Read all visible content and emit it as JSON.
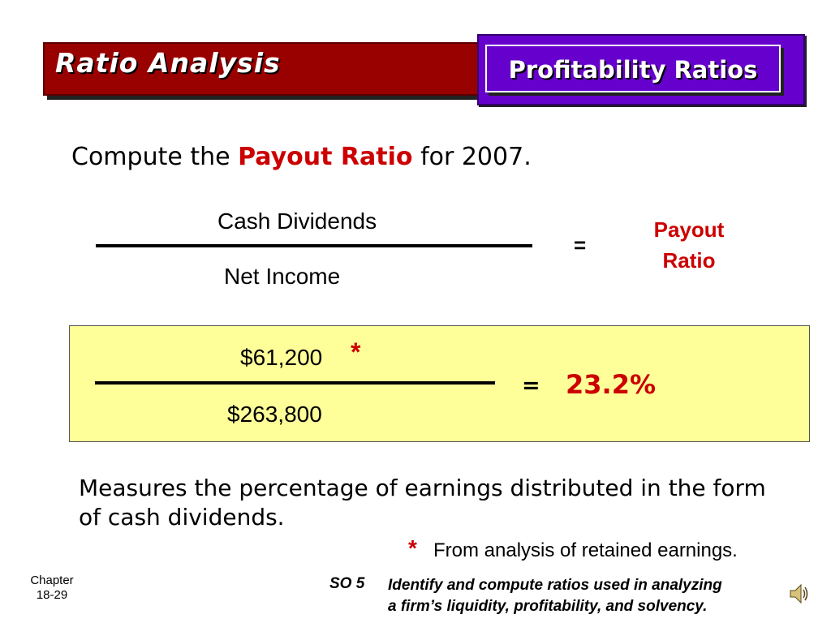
{
  "header": {
    "section_title": "Ratio Analysis",
    "topic_title": "Profitability Ratios"
  },
  "compute": {
    "prefix": "Compute the",
    "highlight": "Payout Ratio",
    "suffix": "for 2007."
  },
  "formula": {
    "numerator": "Cash Dividends",
    "denominator": "Net Income",
    "equals": "=",
    "result_line1": "Payout",
    "result_line2": "Ratio"
  },
  "calculation": {
    "numerator": "$61,200",
    "asterisk": "*",
    "denominator": "$263,800",
    "equals": "=",
    "result": "23.2%"
  },
  "description": "Measures the percentage of earnings distributed in the form of cash dividends.",
  "footnote": {
    "asterisk": "*",
    "text": "From analysis of retained earnings."
  },
  "footer": {
    "chapter_label": "Chapter",
    "chapter_page": "18-29",
    "so_label": "SO 5",
    "so_line1": "Identify and compute ratios used in analyzing",
    "so_line2": "a firm’s liquidity, profitability, and solvency."
  },
  "icons": {
    "audio": "speaker-icon"
  },
  "colors": {
    "section_bar": "#990000",
    "topic_bar": "#6600cc",
    "highlight": "#cc0000",
    "calc_box": "#ffff99"
  }
}
